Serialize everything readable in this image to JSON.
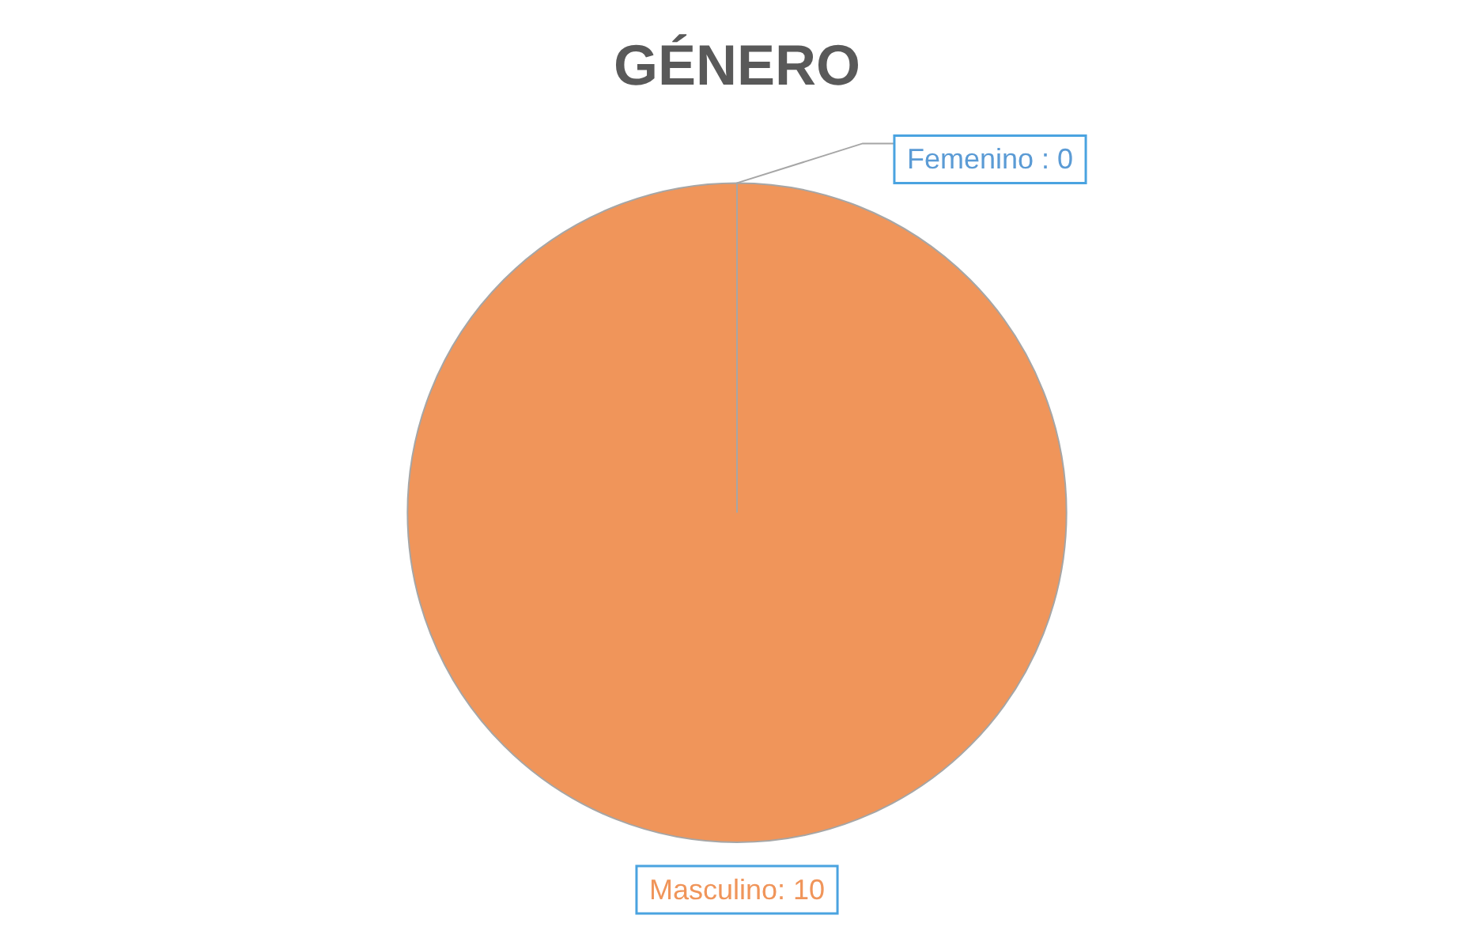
{
  "chart_data": {
    "type": "pie",
    "title": "GÉNERO",
    "categories": [
      "Femenino",
      "Masculino"
    ],
    "values": [
      0,
      10
    ],
    "colors": [
      "#5b9bd5",
      "#f0955a"
    ],
    "value_labels": [
      " : 0",
      ": 10"
    ],
    "legend": false
  }
}
